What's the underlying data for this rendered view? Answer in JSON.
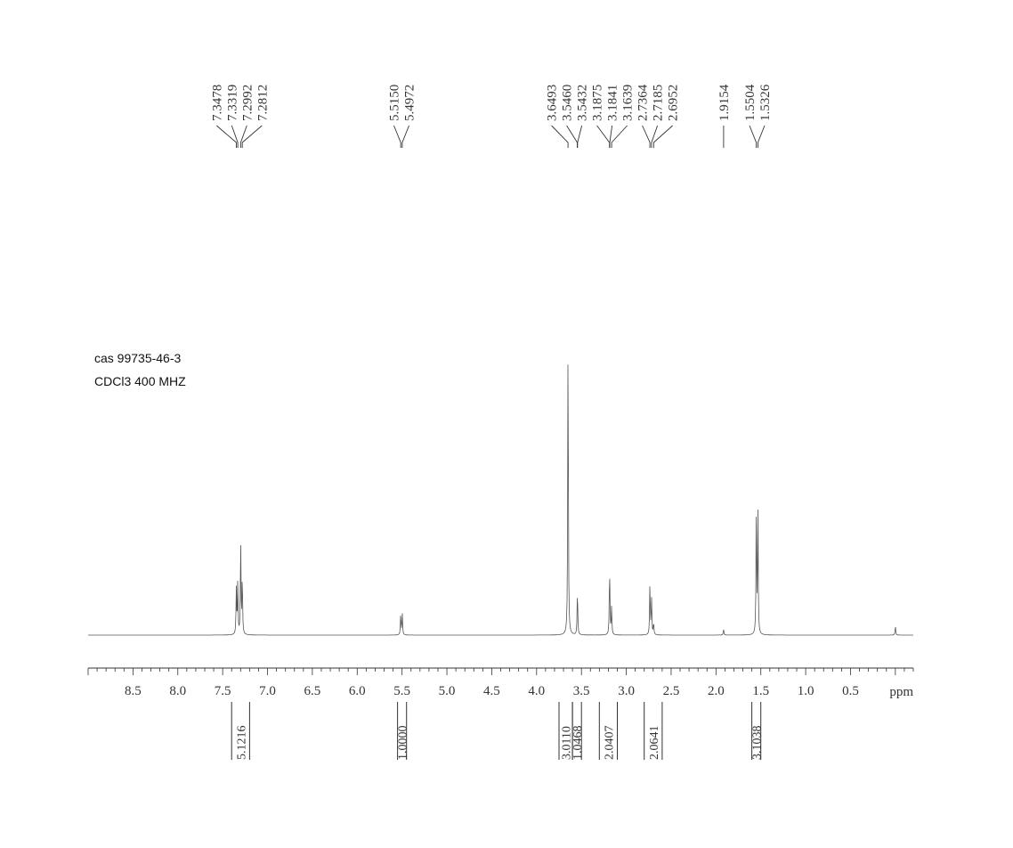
{
  "info": {
    "line1": "cas  99735-46-3",
    "line2": "CDCl3 400 MHZ"
  },
  "chart_data": {
    "type": "line",
    "title": "",
    "xlabel": "ppm",
    "ylabel": "",
    "xlim": [
      9.0,
      -0.2
    ],
    "x_reversed": true,
    "grid": false,
    "x_ticks": [
      "8.5",
      "8.0",
      "7.5",
      "7.0",
      "6.5",
      "6.0",
      "5.5",
      "5.0",
      "4.5",
      "4.0",
      "3.5",
      "3.0",
      "2.5",
      "2.0",
      "1.5",
      "1.0",
      "0.5"
    ],
    "peak_labels": [
      {
        "group": 1,
        "values": [
          "7.3478",
          "7.3319",
          "7.2992",
          "7.2812"
        ]
      },
      {
        "group": 2,
        "values": [
          "5.5150",
          "5.4972"
        ]
      },
      {
        "group": 3,
        "values": [
          "3.6493",
          "3.5460",
          "3.5432",
          "3.1875",
          "3.1841",
          "3.1639",
          "2.7364",
          "2.7185",
          "2.6952"
        ]
      },
      {
        "group": 4,
        "values": [
          "1.9154"
        ]
      },
      {
        "group": 5,
        "values": [
          "1.5504",
          "1.5326"
        ]
      }
    ],
    "integrals": [
      {
        "from": 7.4,
        "to": 7.2,
        "value": "5.1216"
      },
      {
        "from": 5.55,
        "to": 5.45,
        "value": "1.0000"
      },
      {
        "from": 3.75,
        "to": 3.6,
        "value": "3.0110"
      },
      {
        "from": 3.6,
        "to": 3.5,
        "value": "1.0468"
      },
      {
        "from": 3.3,
        "to": 3.1,
        "value": "2.0407"
      },
      {
        "from": 2.8,
        "to": 2.6,
        "value": "2.0641"
      },
      {
        "from": 1.6,
        "to": 1.5,
        "value": "3.1038"
      }
    ],
    "series": [
      {
        "peaks": [
          {
            "ppm": 7.3478,
            "h": 0.15
          },
          {
            "ppm": 7.3319,
            "h": 0.17
          },
          {
            "ppm": 7.2992,
            "h": 0.31
          },
          {
            "ppm": 7.2812,
            "h": 0.19
          },
          {
            "ppm": 5.515,
            "h": 0.07
          },
          {
            "ppm": 5.4972,
            "h": 0.07
          },
          {
            "ppm": 3.6493,
            "h": 1.0
          },
          {
            "ppm": 3.546,
            "h": 0.08
          },
          {
            "ppm": 3.5432,
            "h": 0.07
          },
          {
            "ppm": 3.1875,
            "h": 0.12
          },
          {
            "ppm": 3.1841,
            "h": 0.11
          },
          {
            "ppm": 3.1639,
            "h": 0.09
          },
          {
            "ppm": 2.7364,
            "h": 0.17
          },
          {
            "ppm": 2.7185,
            "h": 0.12
          },
          {
            "ppm": 2.6952,
            "h": 0.04
          },
          {
            "ppm": 1.9154,
            "h": 0.02
          },
          {
            "ppm": 1.5504,
            "h": 0.41
          },
          {
            "ppm": 1.5326,
            "h": 0.41
          },
          {
            "ppm": 0.0,
            "h": 0.03
          }
        ]
      }
    ]
  }
}
